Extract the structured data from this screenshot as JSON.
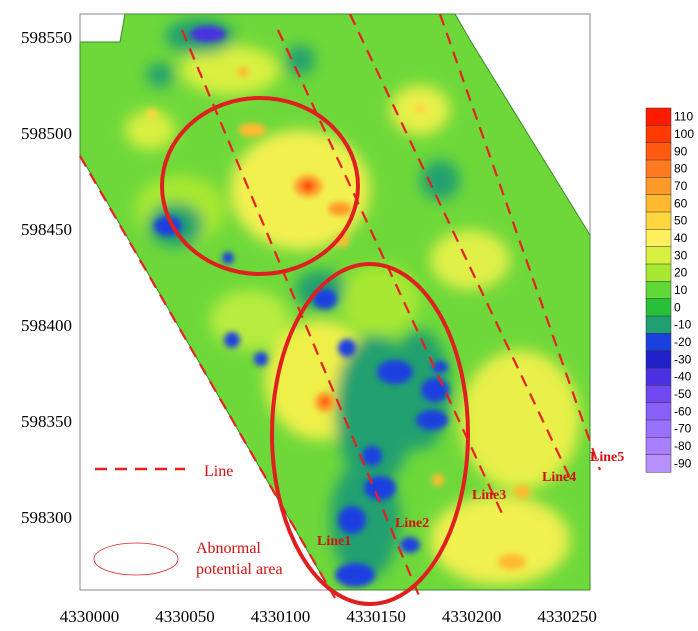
{
  "axes": {
    "x_ticks": [
      "4330000",
      "4330050",
      "4330100",
      "4330150",
      "4330200",
      "4330250"
    ],
    "y_ticks": [
      "598550",
      "598500",
      "598450",
      "598400",
      "598350",
      "598300"
    ],
    "x_range": [
      4329995,
      4330262
    ],
    "y_range": [
      598262,
      598562
    ]
  },
  "colorbar": {
    "labels": [
      "110",
      "100",
      "90",
      "80",
      "70",
      "60",
      "50",
      "40",
      "30",
      "20",
      "10",
      "0",
      "-10",
      "-20",
      "-30",
      "-40",
      "-50",
      "-60",
      "-70",
      "-80",
      "-90"
    ],
    "colors": [
      "#ff1a00",
      "#ff3a00",
      "#ff5a10",
      "#ff7a20",
      "#ff9a2a",
      "#ffba30",
      "#ffd640",
      "#fff060",
      "#d8f040",
      "#a8e830",
      "#60d838",
      "#28c038",
      "#20a070",
      "#1a40e0",
      "#2020c8",
      "#4a30e0",
      "#7048f0",
      "#8860f8",
      "#9a70ff",
      "#a880ff",
      "#b890ff"
    ]
  },
  "survey_lines": [
    {
      "name": "Line1"
    },
    {
      "name": "Line2"
    },
    {
      "name": "Line3"
    },
    {
      "name": "Line4"
    },
    {
      "name": "Line5"
    }
  ],
  "legend": {
    "line_label": "Line",
    "area_label_1": "Abnormal",
    "area_label_2": "potential area"
  },
  "colors": {
    "line_red": "#e82020",
    "ellipse_red": "#e02020",
    "base_green": "#6ed83a"
  }
}
